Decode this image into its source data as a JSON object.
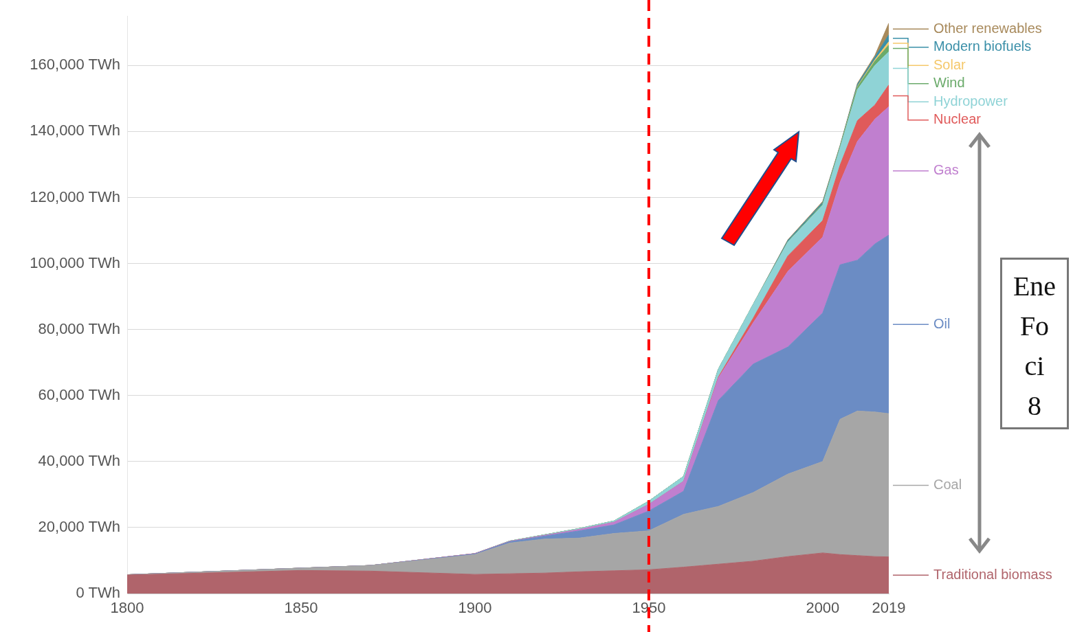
{
  "chart_data": {
    "type": "area",
    "stacked": true,
    "x": [
      1800,
      1850,
      1870,
      1900,
      1910,
      1920,
      1930,
      1940,
      1950,
      1960,
      1970,
      1980,
      1990,
      2000,
      2005,
      2010,
      2015,
      2019
    ],
    "series": [
      {
        "name": "Traditional biomass",
        "color": "#b0646b",
        "values": [
          5600,
          7000,
          6800,
          5800,
          6000,
          6200,
          6600,
          6900,
          7200,
          8000,
          8900,
          9800,
          11200,
          12300,
          11800,
          11500,
          11200,
          11100
        ]
      },
      {
        "name": "Coal",
        "color": "#a6a6a6",
        "values": [
          100,
          700,
          1700,
          6000,
          9300,
          10300,
          10200,
          11300,
          11800,
          16000,
          17500,
          20800,
          25000,
          27700,
          41000,
          43800,
          43800,
          43400
        ]
      },
      {
        "name": "Oil",
        "color": "#6b8cc4",
        "values": [
          0,
          0,
          0,
          200,
          400,
          900,
          2200,
          2600,
          6000,
          7000,
          32100,
          38900,
          38500,
          45000,
          46800,
          45700,
          50900,
          54100
        ]
      },
      {
        "name": "Gas",
        "color": "#c07fcf",
        "values": [
          0,
          0,
          0,
          100,
          100,
          200,
          400,
          800,
          2000,
          3000,
          6800,
          12500,
          22900,
          23000,
          25000,
          36000,
          37800,
          38900
        ]
      },
      {
        "name": "Nuclear",
        "color": "#e05a5a",
        "values": [
          0,
          0,
          0,
          0,
          0,
          0,
          0,
          0,
          0,
          0,
          300,
          1400,
          4700,
          5000,
          5200,
          6300,
          4300,
          6600
        ]
      },
      {
        "name": "Hydropower",
        "color": "#8fd3d6",
        "values": [
          0,
          0,
          0,
          0,
          100,
          200,
          300,
          400,
          1000,
          1500,
          2400,
          4200,
          4200,
          4700,
          5200,
          9400,
          12000,
          10000
        ]
      },
      {
        "name": "Wind",
        "color": "#6aaa6a",
        "values": [
          0,
          0,
          0,
          0,
          0,
          0,
          0,
          0,
          0,
          0,
          0,
          0,
          100,
          300,
          300,
          800,
          1300,
          2100
        ]
      },
      {
        "name": "Solar",
        "color": "#f5c86a",
        "values": [
          0,
          0,
          0,
          0,
          0,
          0,
          0,
          0,
          0,
          0,
          0,
          0,
          0,
          0,
          0,
          200,
          400,
          1000
        ]
      },
      {
        "name": "Modern biofuels",
        "color": "#3a8fa8",
        "values": [
          0,
          0,
          0,
          0,
          0,
          0,
          0,
          0,
          0,
          0,
          0,
          0,
          400,
          500,
          300,
          600,
          800,
          2100
        ]
      },
      {
        "name": "Other renewables",
        "color": "#a88a5c",
        "values": [
          0,
          0,
          0,
          0,
          0,
          0,
          0,
          0,
          0,
          0,
          0,
          0,
          200,
          300,
          200,
          300,
          500,
          3500
        ]
      }
    ],
    "xlim": [
      1800,
      2019
    ],
    "xticks": [
      1800,
      1850,
      1900,
      1950,
      2000,
      2019
    ],
    "ylim": [
      0,
      175000
    ],
    "yticks": [
      {
        "value": 0,
        "label": "0 TWh"
      },
      {
        "value": 20000,
        "label": "20,000 TWh"
      },
      {
        "value": 40000,
        "label": "40,000 TWh"
      },
      {
        "value": 60000,
        "label": "60,000 TWh"
      },
      {
        "value": 80000,
        "label": "80,000 TWh"
      },
      {
        "value": 100000,
        "label": "100,000 TWh"
      },
      {
        "value": 120000,
        "label": "120,000 TWh"
      },
      {
        "value": 140000,
        "label": "140,000 TWh"
      },
      {
        "value": 160000,
        "label": "160,000 TWh"
      }
    ],
    "grid": "y",
    "legend": "right",
    "ref_lines": [
      {
        "axis": "x",
        "value": 1950,
        "color": "#ff0000",
        "line_style": "dashed"
      }
    ],
    "annotations": [
      "Ene\nFo\nci\n8"
    ]
  }
}
